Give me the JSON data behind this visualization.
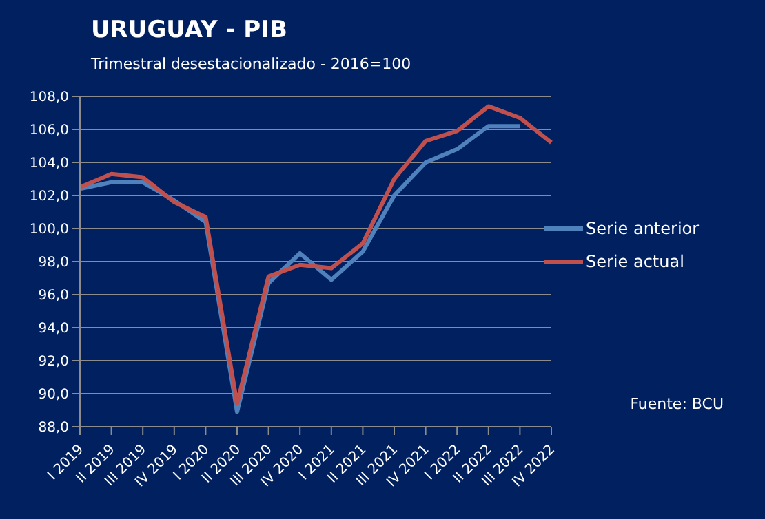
{
  "chart_data": {
    "type": "line",
    "title": "URUGUAY - PIB",
    "subtitle": "Trimestral desestacionalizado - 2016=100",
    "categories": [
      "I 2019",
      "II 2019",
      "III 2019",
      "IV 2019",
      "I 2020",
      "II 2020",
      "III 2020",
      "IV 2020",
      "I 2021",
      "II 2021",
      "III 2021",
      "IV 2021",
      "I 2022",
      "II 2022",
      "III 2022",
      "IV 2022"
    ],
    "series": [
      {
        "name": "Serie anterior",
        "color": "#4f81bd",
        "values": [
          102.4,
          102.8,
          102.8,
          101.7,
          100.4,
          88.9,
          96.7,
          98.5,
          96.9,
          98.6,
          102.0,
          104.0,
          104.8,
          106.2,
          106.2,
          null
        ]
      },
      {
        "name": "Serie actual",
        "color": "#c0504d",
        "values": [
          102.5,
          103.3,
          103.1,
          101.6,
          100.7,
          89.4,
          97.1,
          97.8,
          97.6,
          99.1,
          103.0,
          105.3,
          105.9,
          107.4,
          106.7,
          105.2
        ]
      }
    ],
    "ylim": [
      88,
      108
    ],
    "yticks": [
      {
        "value": 88,
        "label": "88,0"
      },
      {
        "value": 90,
        "label": "90,0"
      },
      {
        "value": 92,
        "label": "92,0"
      },
      {
        "value": 94,
        "label": "94,0"
      },
      {
        "value": 96,
        "label": "96,0"
      },
      {
        "value": 98,
        "label": "98,0"
      },
      {
        "value": 100,
        "label": "100,0"
      },
      {
        "value": 102,
        "label": "102,0"
      },
      {
        "value": 104,
        "label": "104,0"
      },
      {
        "value": 106,
        "label": "106,0"
      },
      {
        "value": 108,
        "label": "108,0"
      }
    ],
    "grid": "y",
    "legend": "right",
    "marker": "none",
    "line_style": "solid",
    "annotations": [
      "Fuente: BCU"
    ]
  }
}
